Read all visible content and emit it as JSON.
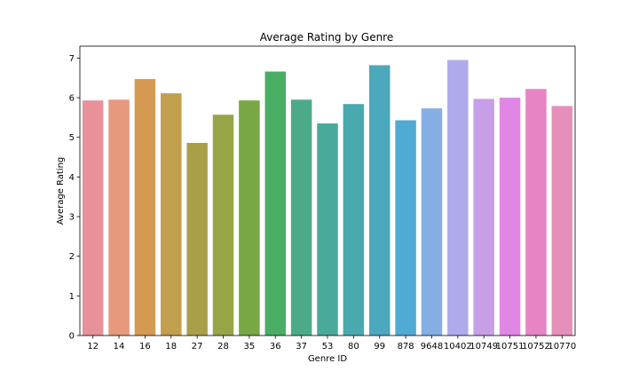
{
  "chart_data": {
    "type": "bar",
    "title": "Average Rating by Genre",
    "xlabel": "Genre ID",
    "ylabel": "Average Rating",
    "categories": [
      "12",
      "14",
      "16",
      "18",
      "27",
      "28",
      "35",
      "36",
      "37",
      "53",
      "80",
      "99",
      "878",
      "9648",
      "10402",
      "10749",
      "10751",
      "10752",
      "10770"
    ],
    "values": [
      5.93,
      5.95,
      6.47,
      6.11,
      4.86,
      5.57,
      5.93,
      6.66,
      5.95,
      5.35,
      5.84,
      6.82,
      5.43,
      5.73,
      6.95,
      5.97,
      6.0,
      6.22,
      5.79
    ],
    "colors": [
      "#e8919b",
      "#e7987d",
      "#d49a52",
      "#c19f4f",
      "#aa9f47",
      "#98a547",
      "#78a745",
      "#49ad63",
      "#4bab89",
      "#49a99a",
      "#4aa9ae",
      "#4ca8bd",
      "#50abd4",
      "#85aee4",
      "#aeaaeb",
      "#c79fe6",
      "#e286e6",
      "#e784c4",
      "#e68fbb"
    ],
    "ylim": [
      0,
      7.3
    ],
    "yticks": [
      0,
      1,
      2,
      3,
      4,
      5,
      6,
      7
    ],
    "grid": false,
    "legend": "none"
  }
}
